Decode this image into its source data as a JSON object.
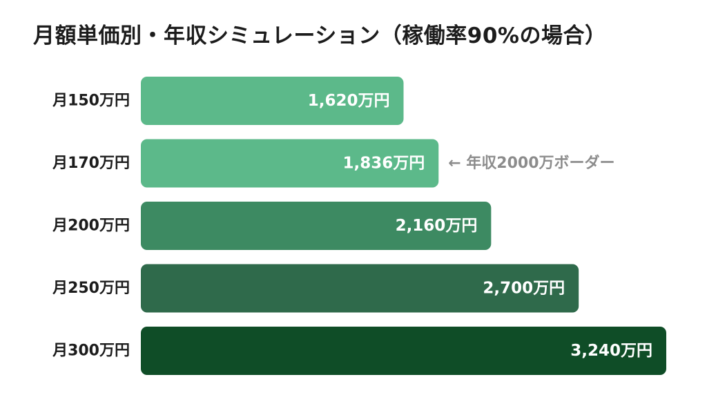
{
  "title": "月額単価別・年収シミュレーション（稼働率90%の場合）",
  "chart_data": {
    "type": "bar",
    "orientation": "horizontal",
    "categories": [
      "月150万円",
      "月170万円",
      "月200万円",
      "月250万円",
      "月300万円"
    ],
    "values": [
      1620,
      1836,
      2160,
      2700,
      3240
    ],
    "value_labels": [
      "1,620万円",
      "1,836万円",
      "2,160万円",
      "2,700万円",
      "3,240万円"
    ],
    "bar_colors": [
      "#5cb98a",
      "#5cb98a",
      "#3d8a62",
      "#2f6a4b",
      "#0f4d27"
    ],
    "annotation": {
      "category_index": 1,
      "text": "← 年収2000万ボーダー",
      "color": "#8c8c8c"
    },
    "grid": false,
    "legend": "none"
  }
}
